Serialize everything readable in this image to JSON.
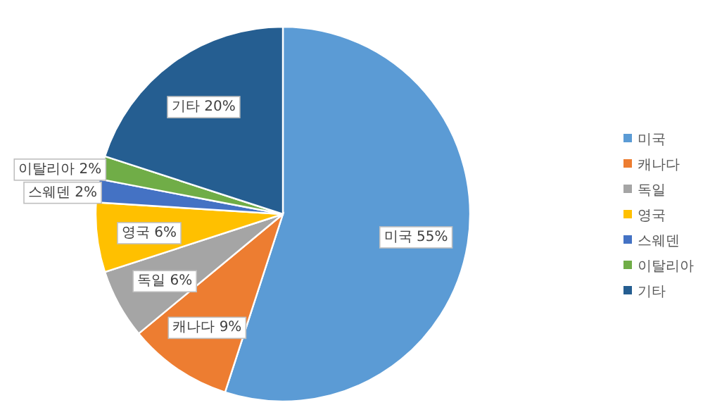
{
  "chart_data": {
    "type": "pie",
    "categories": [
      "미국",
      "캐나다",
      "독일",
      "영국",
      "스웨덴",
      "이탈리아",
      "기타"
    ],
    "values": [
      55,
      9,
      6,
      6,
      2,
      2,
      20
    ],
    "colors": [
      "#5b9bd5",
      "#ed7d31",
      "#a5a5a5",
      "#ffc000",
      "#4472c4",
      "#70ad47",
      "#255e91"
    ],
    "value_labels": [
      "미국 55%",
      "캐나다 9%",
      "독일 6%",
      "영국 6%",
      "스웨덴 2%",
      "이탈리아 2%",
      "기타 20%"
    ],
    "legend": "right"
  }
}
